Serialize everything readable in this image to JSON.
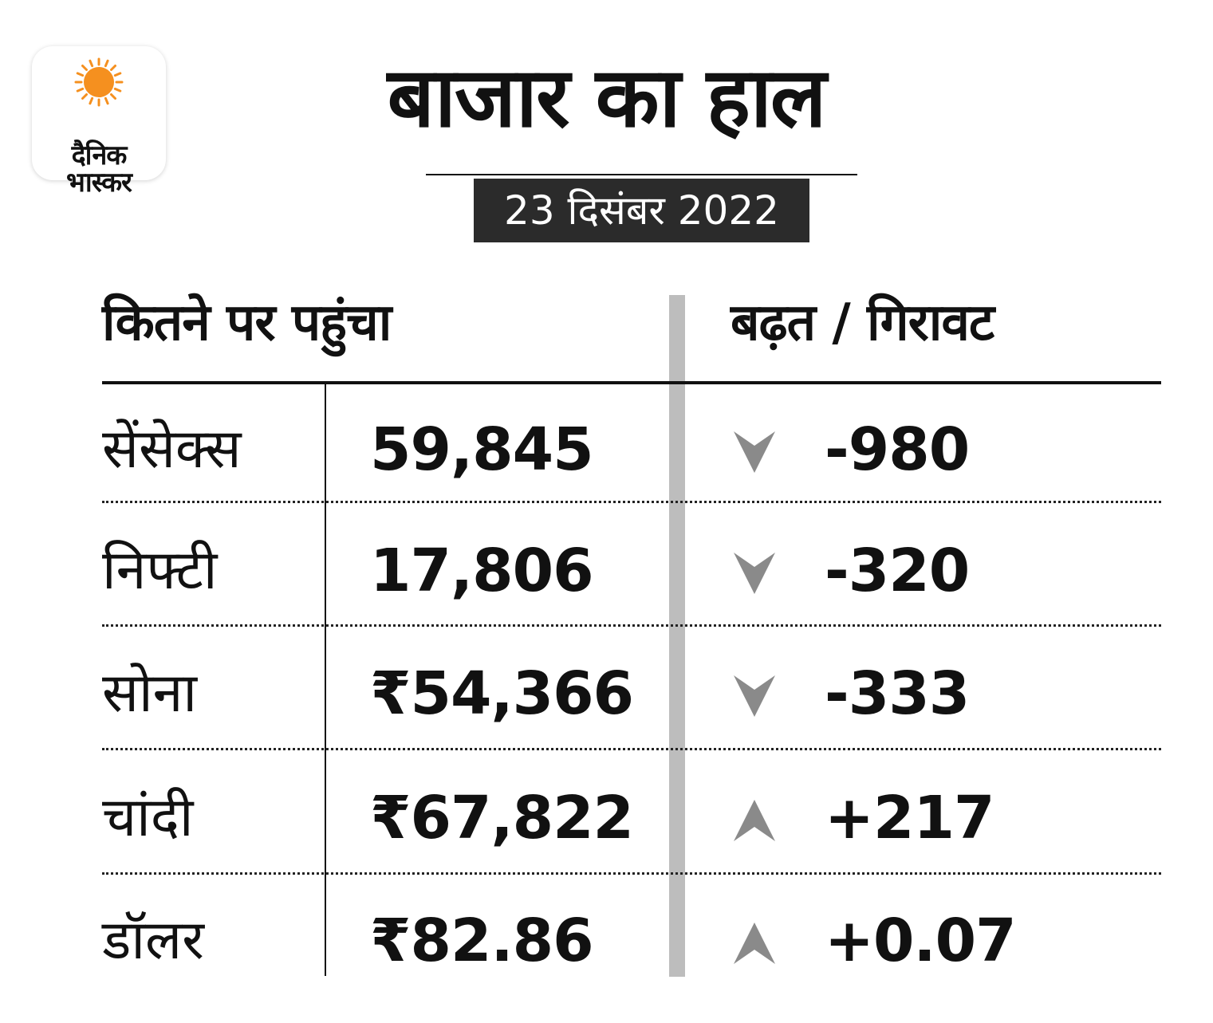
{
  "logo": {
    "line1": "दैनिक",
    "line2": "भास्कर"
  },
  "header": {
    "title": "बाजार का हाल",
    "date": "23 दिसंबर 2022"
  },
  "columns": {
    "left": "कितने पर पहुंचा",
    "right": "बढ़त / गिरावट"
  },
  "rows": [
    {
      "label": "सेंसेक्स",
      "value": "59,845",
      "direction": "down",
      "change": "-980"
    },
    {
      "label": "निफ्टी",
      "value": "17,806",
      "direction": "down",
      "change": "-320"
    },
    {
      "label": "सोना",
      "value": "₹54,366",
      "direction": "down",
      "change": "-333"
    },
    {
      "label": "चांदी",
      "value": "₹67,822",
      "direction": "up",
      "change": "+217"
    },
    {
      "label": "डॉलर",
      "value": "₹82.86",
      "direction": "up",
      "change": "+0.07"
    }
  ],
  "colors": {
    "sun": "#f5901f",
    "arrow": "#8a8a8a",
    "badge": "#2b2b2b",
    "divider": "#bdbdbd"
  }
}
